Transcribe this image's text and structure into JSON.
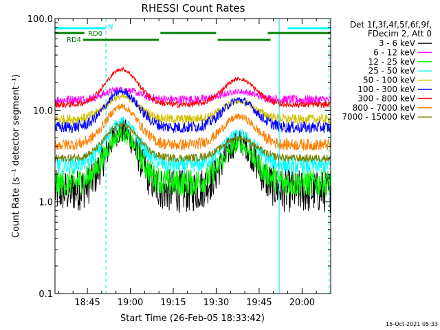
{
  "chart_data": {
    "type": "line",
    "title": "RHESSI Count Rates",
    "xlabel": "Start Time (26-Feb-05 18:33:42)",
    "ylabel": "Count Rate (s⁻¹ detector segment⁻¹)",
    "yscale": "log",
    "ylim": [
      0.1,
      100
    ],
    "xlim": [
      "18:33:42",
      "20:10:00"
    ],
    "x_ticks": [
      "18:45",
      "19:00",
      "19:15",
      "19:30",
      "19:45",
      "20:00"
    ],
    "y_ticks": [
      "0.1",
      "1.0",
      "10.0",
      "100.0"
    ],
    "grid": false,
    "legend_position": "right",
    "legend_header": [
      "Det 1f,3f,4f,5f,6f,9f,",
      "FDecim 2, Att 0"
    ],
    "footer": "15-Oct-2021 05:33",
    "series": [
      {
        "name": "3 - 6 keV",
        "color": "#000000",
        "base": 1.3,
        "peak1": 6.0,
        "peak2": 4.5,
        "noise": 0.55
      },
      {
        "name": "6 - 12 keV",
        "color": "#ff00ff",
        "base": 13.0,
        "peak1": 17.0,
        "peak2": 16.0,
        "noise": 0.12
      },
      {
        "name": "12 - 25 keV",
        "color": "#00ff00",
        "base": 1.6,
        "peak1": 5.5,
        "peak2": 4.2,
        "noise": 0.35
      },
      {
        "name": "25 - 50 keV",
        "color": "#00ffff",
        "base": 2.5,
        "peak1": 7.5,
        "peak2": 5.5,
        "noise": 0.22
      },
      {
        "name": "50 - 100 keV",
        "color": "#d0c000",
        "base": 8.0,
        "peak1": 14.0,
        "peak2": 12.5,
        "noise": 0.12
      },
      {
        "name": "100 - 300 keV",
        "color": "#0000ff",
        "base": 6.5,
        "peak1": 16.0,
        "peak2": 13.0,
        "noise": 0.15
      },
      {
        "name": "300 - 800 keV",
        "color": "#ff0000",
        "base": 11.5,
        "peak1": 28.0,
        "peak2": 22.0,
        "noise": 0.08
      },
      {
        "name": "800 - 7000 keV",
        "color": "#ff8000",
        "base": 4.2,
        "peak1": 11.0,
        "peak2": 8.5,
        "noise": 0.15
      },
      {
        "name": "7000 - 15000 keV",
        "color": "#808000",
        "base": 3.0,
        "peak1": 7.0,
        "peak2": 5.0,
        "noise": 0.1
      }
    ],
    "peak_centers": [
      "18:57",
      "19:38"
    ],
    "annotations": {
      "n_label": "N",
      "rd0_label": "RD0",
      "rd4_label": "RD4",
      "n_spans": [
        [
          "18:33:42",
          "18:51:30"
        ],
        [
          "19:55:00",
          "20:10:00"
        ]
      ],
      "rd0_spans": [
        [
          "18:33:42",
          "18:44:00"
        ],
        [
          "19:10:30",
          "19:30:00"
        ],
        [
          "19:48:00",
          "20:10:00"
        ]
      ],
      "rd4_spans": [
        [
          "18:43:30",
          "19:10:00"
        ],
        [
          "19:30:30",
          "19:49:00"
        ]
      ],
      "vlines_solid": [
        "18:33:42",
        "19:52:00"
      ],
      "vlines_dashed": [
        "18:51:30",
        "20:09:30"
      ]
    }
  }
}
